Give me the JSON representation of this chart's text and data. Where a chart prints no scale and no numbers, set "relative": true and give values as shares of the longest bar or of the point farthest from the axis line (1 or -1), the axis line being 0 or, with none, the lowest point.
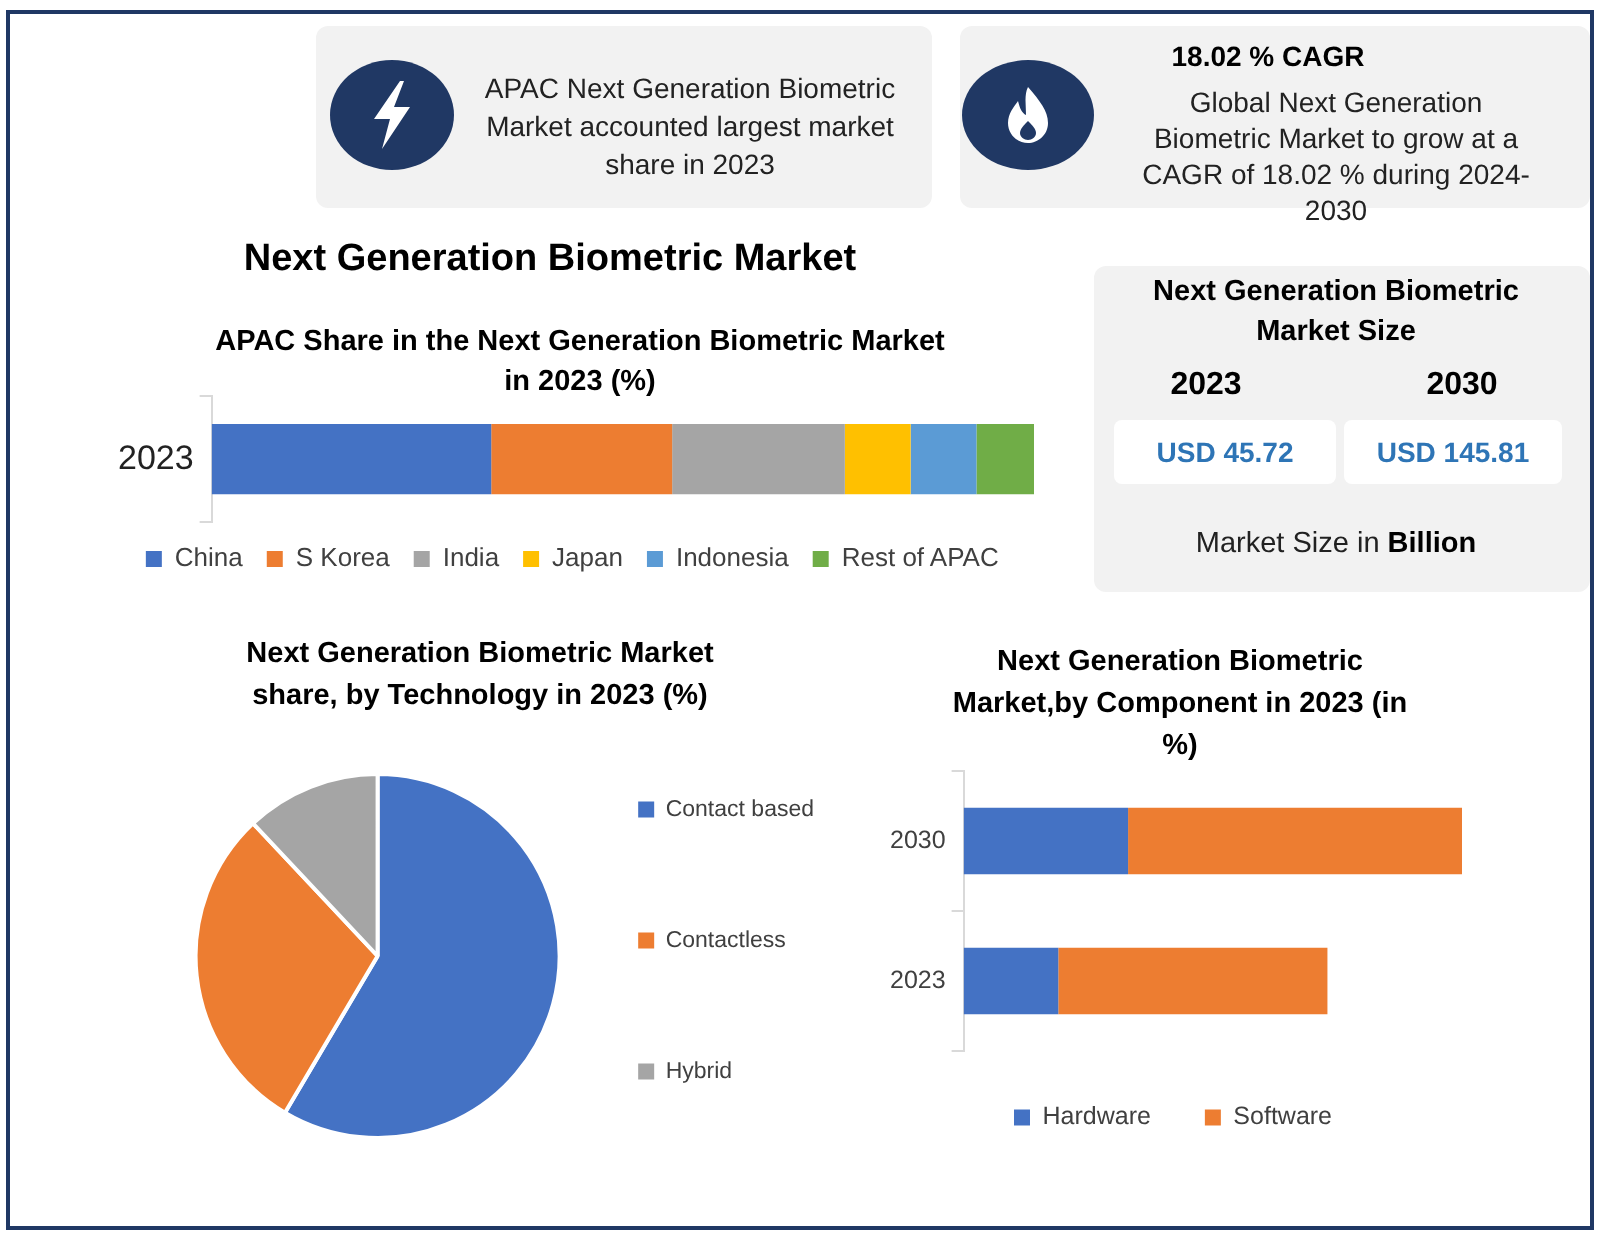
{
  "chart_data": [
    {
      "type": "other",
      "annotations": [
        "APAC Next Generation Biometric Market accounted largest market share in 2023"
      ]
    },
    {
      "type": "other",
      "title": "18.02 % CAGR",
      "annotations": [
        "Global Next Generation Biometric Market to grow at a CAGR of 18.02 % during 2024-2030"
      ]
    },
    {
      "type": "bar",
      "title": "Next Generation Biometric Market",
      "subtitle": "APAC Share in the Next Generation Biometric Market in 2023 (%)",
      "orientation": "horizontal",
      "stacked": true,
      "relative": true,
      "categories": [
        "2023"
      ],
      "series": [
        {
          "name": "China",
          "color": "#4472c4",
          "values": [
            0.34
          ]
        },
        {
          "name": "S Korea",
          "color": "#ed7d31",
          "values": [
            0.22
          ]
        },
        {
          "name": "India",
          "color": "#a5a5a5",
          "values": [
            0.21
          ]
        },
        {
          "name": "Japan",
          "color": "#ffc000",
          "values": [
            0.08
          ]
        },
        {
          "name": "Indonesia",
          "color": "#5b9bd5",
          "values": [
            0.08
          ]
        },
        {
          "name": "Rest of APAC",
          "color": "#70ad47",
          "values": [
            0.07
          ]
        }
      ],
      "legend": "bottom"
    },
    {
      "type": "other",
      "title": "Next Generation Biometric Market Size",
      "annotations": [
        "2023",
        "2030",
        "USD 45.72",
        "USD 145.81",
        "Market Size in Billion"
      ]
    },
    {
      "type": "pie",
      "title": "Next Generation Biometric Market share, by Technology in 2023 (%)",
      "categories": [
        "Contact based",
        "Contactless",
        "Hybrid"
      ],
      "values": [
        58.5,
        29.5,
        12
      ],
      "colors": [
        "#4472c4",
        "#ed7d31",
        "#a5a5a5"
      ],
      "legend": "right"
    },
    {
      "type": "bar",
      "title": "Next Generation Biometric Market,by Component in 2023 (in %)",
      "orientation": "horizontal",
      "stacked": true,
      "relative": true,
      "categories": [
        "2030",
        "2023"
      ],
      "series": [
        {
          "name": "Hardware",
          "color": "#4472c4",
          "values": [
            0.33,
            0.19
          ]
        },
        {
          "name": "Software",
          "color": "#ed7d31",
          "values": [
            0.67,
            0.54
          ]
        }
      ],
      "legend": "bottom"
    }
  ]
}
